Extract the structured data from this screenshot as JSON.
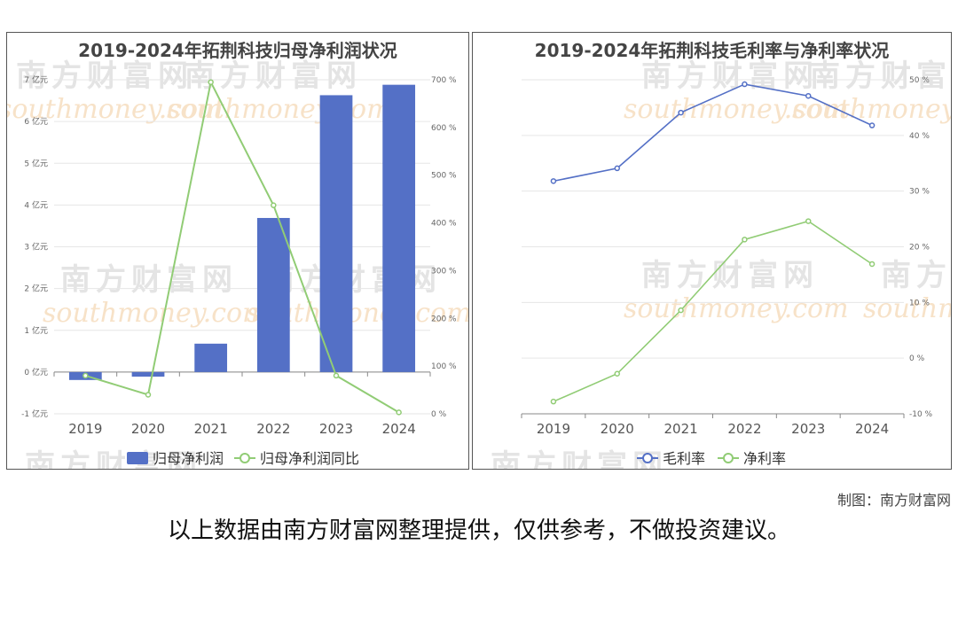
{
  "left_chart_title": "2019-2024年拓荆科技归母净利润状况",
  "right_chart_title": "2019-2024年拓荆科技毛利率与净利率状况",
  "source_text": "制图：南方财富网",
  "disclaimer": "以上数据由南方财富网整理提供，仅供参考，不做投资建议。",
  "watermark": {
    "cn": "南方财富网",
    "en": "southmoney.com"
  },
  "colors": {
    "bar": "#5470c6",
    "line_green": "#91cc75",
    "line_blue": "#5470c6"
  },
  "chart_data": [
    {
      "type": "bar",
      "title": "2019-2024年拓荆科技归母净利润状况",
      "categories": [
        "2019",
        "2020",
        "2021",
        "2022",
        "2023",
        "2024"
      ],
      "y_left": {
        "ylim": [
          -1,
          7
        ],
        "ticks": [
          -1,
          0,
          1,
          2,
          3,
          4,
          5,
          6,
          7
        ],
        "unit": "亿元"
      },
      "y_right": {
        "ylim": [
          0,
          700
        ],
        "ticks": [
          0,
          100,
          200,
          300,
          400,
          500,
          600,
          700
        ],
        "unit": "%"
      },
      "series": [
        {
          "name": "归母净利润",
          "type": "bar",
          "axis": "left",
          "values": [
            -0.19,
            -0.11,
            0.68,
            3.69,
            6.63,
            6.88
          ]
        },
        {
          "name": "归母净利润同比",
          "type": "line",
          "axis": "right",
          "values": [
            80,
            40,
            695,
            437,
            80,
            3
          ]
        }
      ],
      "legend": "bottom-center"
    },
    {
      "type": "line",
      "title": "2019-2024年拓荆科技毛利率与净利率状况",
      "categories": [
        "2019",
        "2020",
        "2021",
        "2022",
        "2023",
        "2024"
      ],
      "y_right": {
        "ylim": [
          -10,
          50
        ],
        "ticks": [
          -10,
          0,
          10,
          20,
          30,
          40,
          50
        ],
        "unit": "%"
      },
      "series": [
        {
          "name": "毛利率",
          "values": [
            31.8,
            34.1,
            44.1,
            49.2,
            47.1,
            41.8
          ]
        },
        {
          "name": "净利率",
          "values": [
            -7.8,
            -2.8,
            8.6,
            21.3,
            24.6,
            16.9
          ]
        }
      ],
      "legend": "bottom-center"
    }
  ]
}
